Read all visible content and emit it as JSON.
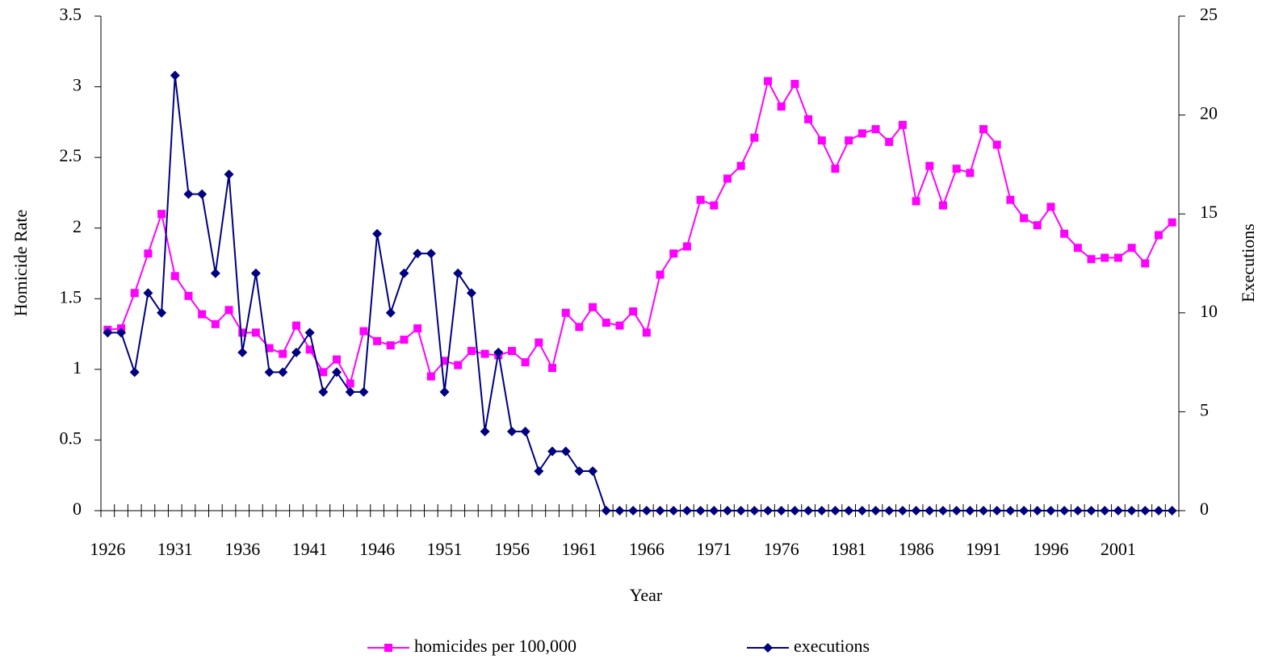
{
  "chart_data": {
    "type": "line",
    "x_label": "Year",
    "y_label": "Homicide Rate",
    "y2_label": "Executions",
    "categories": [
      "1926",
      null,
      null,
      null,
      null,
      "1931",
      null,
      null,
      null,
      null,
      "1936",
      null,
      null,
      null,
      null,
      "1941",
      null,
      null,
      null,
      null,
      "1946",
      null,
      null,
      null,
      null,
      "1951",
      null,
      null,
      null,
      null,
      "1956",
      null,
      null,
      null,
      null,
      "1961",
      null,
      null,
      null,
      null,
      "1966",
      null,
      null,
      null,
      null,
      "1971",
      null,
      null,
      null,
      null,
      "1976",
      null,
      null,
      null,
      null,
      "1981",
      null,
      null,
      null,
      null,
      "1986",
      null,
      null,
      null,
      null,
      "1991",
      null,
      null,
      null,
      null,
      "1996",
      null,
      null,
      null,
      null,
      "2001",
      null,
      null,
      null,
      null
    ],
    "series": [
      {
        "name": "homicides per 100,000",
        "color": "#ff00ff",
        "marker": "square",
        "values": [
          1.28,
          1.29,
          1.54,
          1.82,
          2.1,
          1.66,
          1.52,
          1.39,
          1.32,
          1.42,
          1.26,
          1.26,
          1.15,
          1.11,
          1.31,
          1.14,
          0.98,
          1.07,
          0.9,
          1.27,
          1.2,
          1.17,
          1.21,
          1.29,
          0.95,
          1.06,
          1.03,
          1.13,
          1.11,
          1.1,
          1.13,
          1.05,
          1.19,
          1.01,
          1.4,
          1.3,
          1.44,
          1.33,
          1.31,
          1.41,
          1.26,
          1.67,
          1.82,
          1.87,
          2.2,
          2.16,
          2.35,
          2.44,
          2.64,
          3.04,
          2.86,
          3.02,
          2.77,
          2.62,
          2.42,
          2.62,
          2.67,
          2.7,
          2.61,
          2.73,
          2.19,
          2.44,
          2.16,
          2.42,
          2.39,
          2.7,
          2.59,
          2.2,
          2.07,
          2.02,
          2.15,
          1.96,
          1.86,
          1.78,
          1.79,
          1.79,
          1.86,
          1.75,
          1.95,
          2.04
        ]
      },
      {
        "name": "executions",
        "color": "#000080",
        "marker": "diamond",
        "axis": "y2",
        "values": [
          9,
          9,
          7,
          11,
          10,
          22,
          16,
          16,
          12,
          17,
          8,
          12,
          7,
          7,
          8,
          9,
          6,
          7,
          6,
          6,
          14,
          10,
          12,
          13,
          13,
          6,
          12,
          11,
          4,
          8,
          4,
          4,
          2,
          3,
          3,
          2,
          2,
          0,
          0,
          0,
          0,
          0,
          0,
          0,
          0,
          0,
          0,
          0,
          0,
          0,
          0,
          0,
          0,
          0,
          0,
          0,
          0,
          0,
          0,
          0,
          0,
          0,
          0,
          0,
          0,
          0,
          0,
          0,
          0,
          0,
          0,
          0,
          0,
          0,
          0,
          0,
          0,
          0,
          0,
          0
        ]
      }
    ],
    "ylim": [
      0,
      3.5
    ],
    "yticks": [
      0,
      0.5,
      1,
      1.5,
      2,
      2.5,
      3,
      3.5
    ],
    "y2lim": [
      0,
      25
    ],
    "y2ticks": [
      0,
      5,
      10,
      15,
      20,
      25
    ],
    "grid": false,
    "legend": "bottom"
  }
}
